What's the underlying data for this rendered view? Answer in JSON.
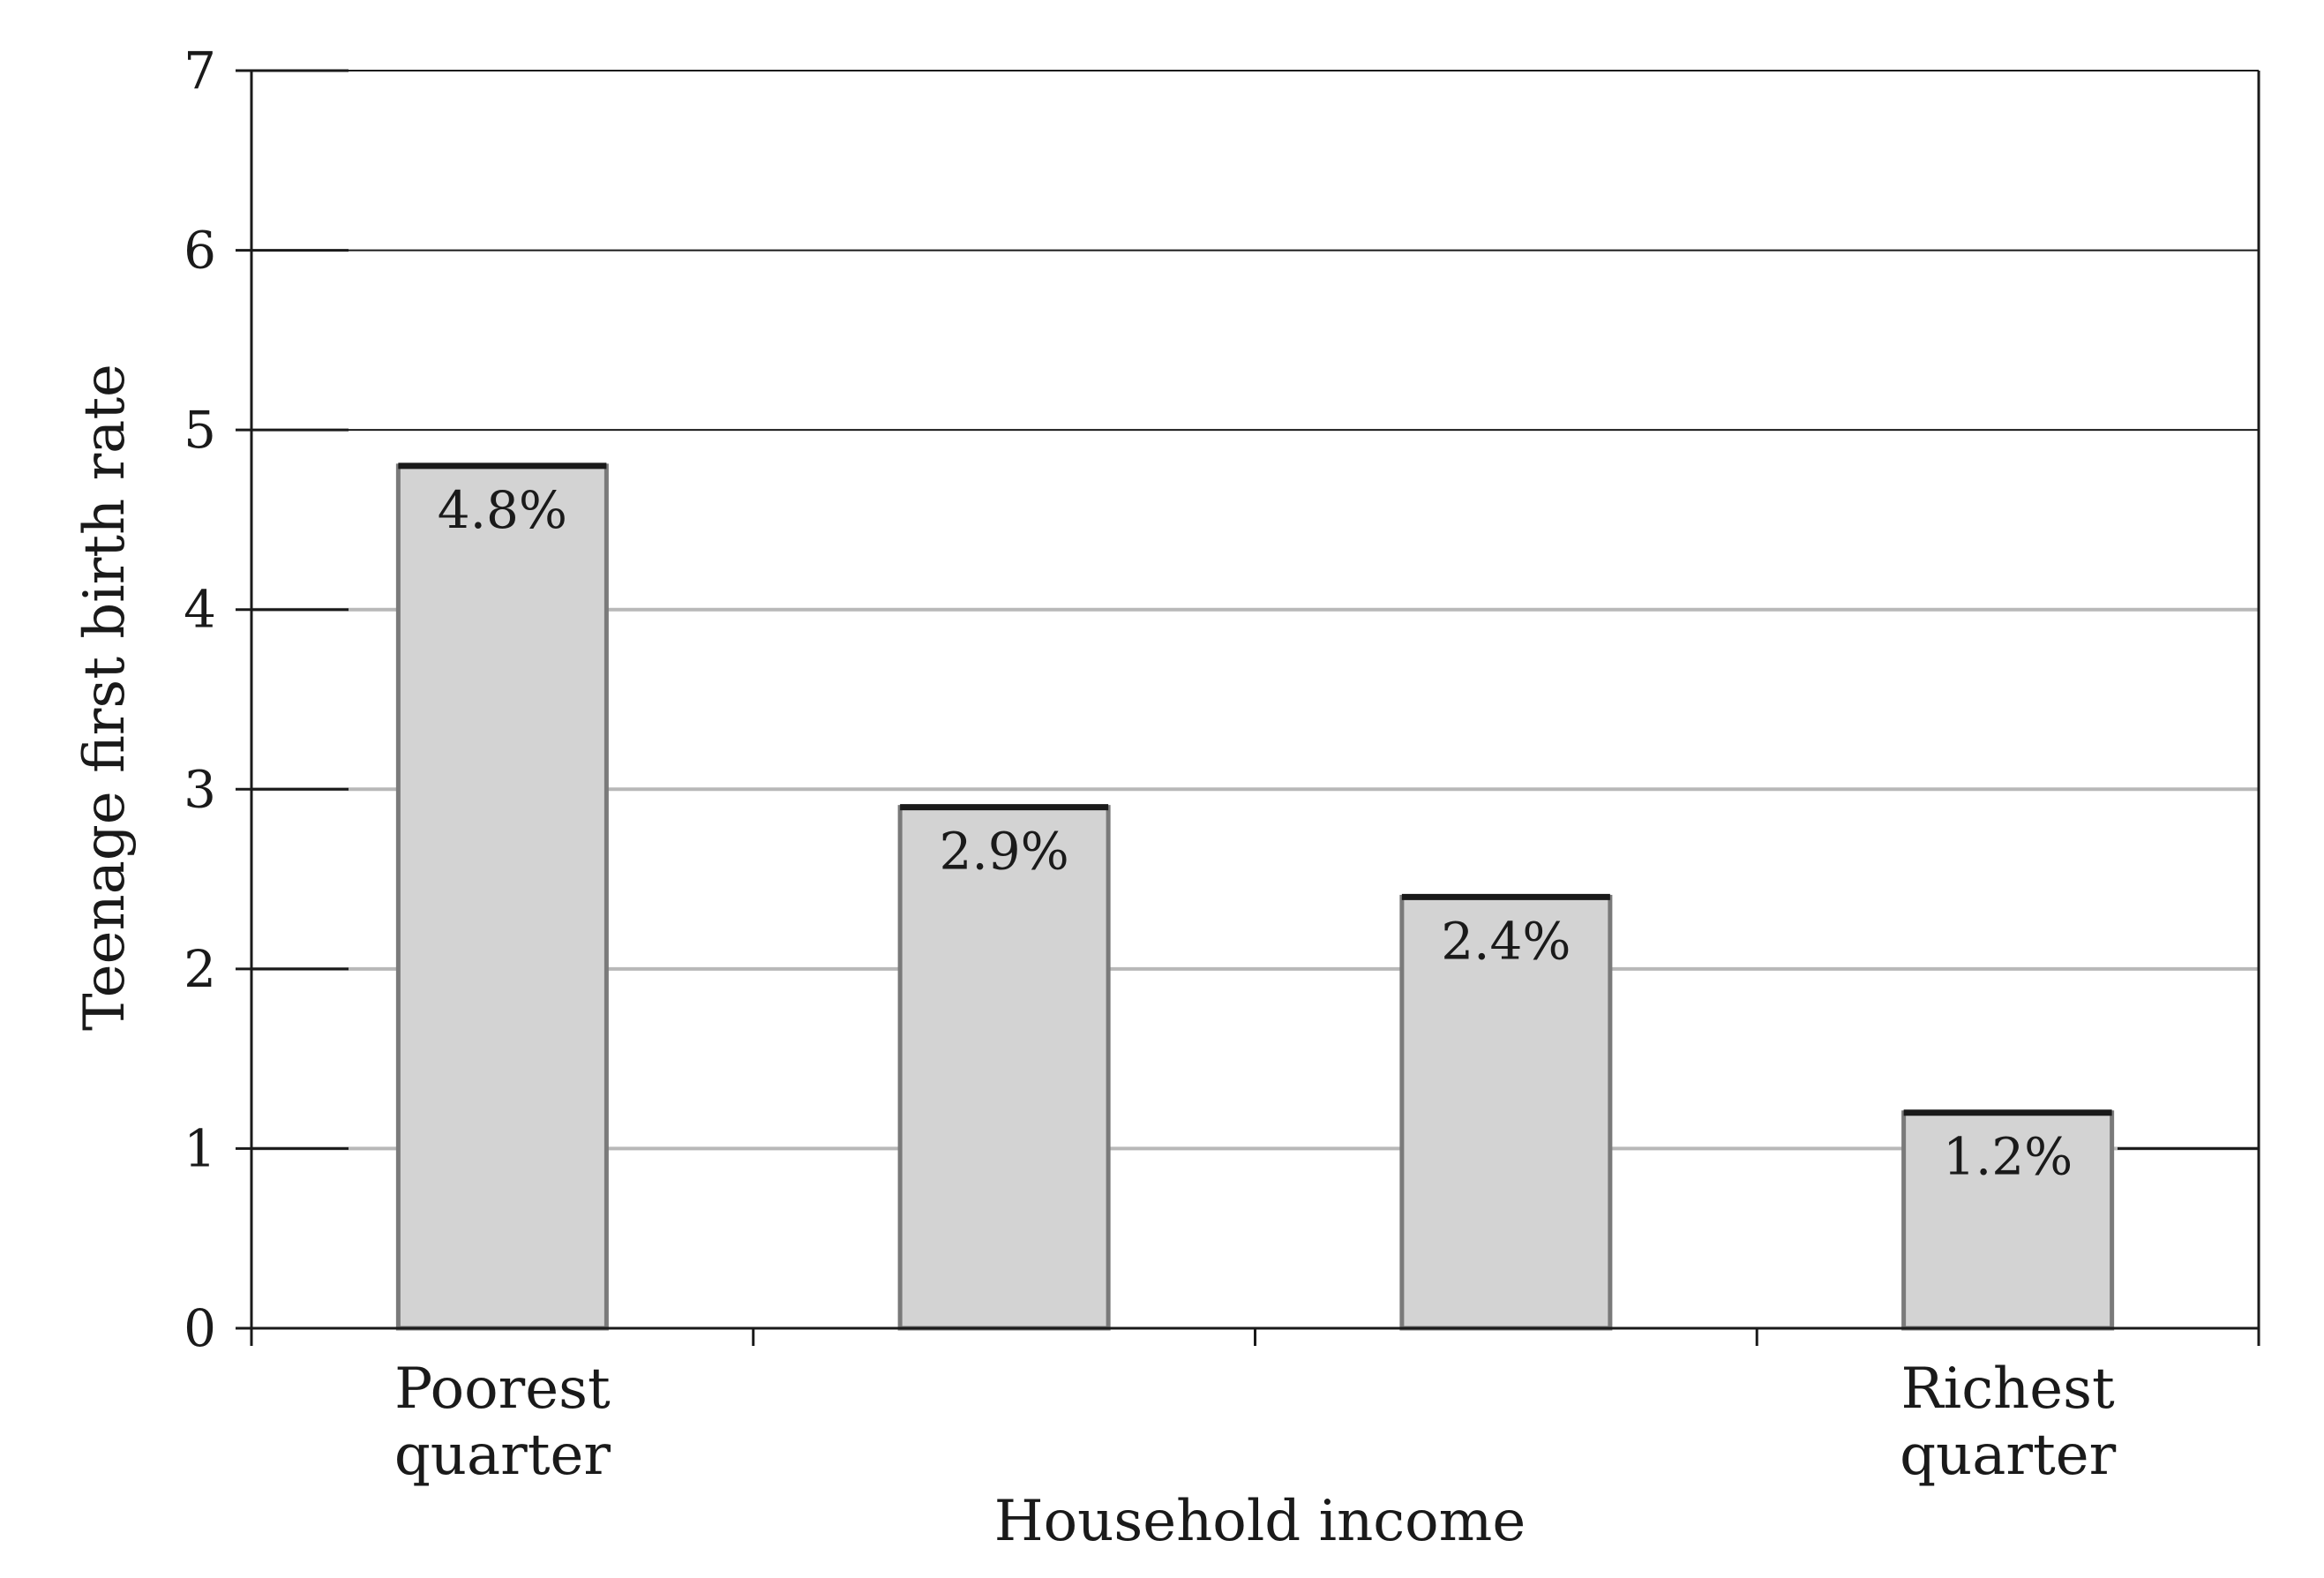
{
  "chart_data": {
    "type": "bar",
    "title": "",
    "categories": [
      "",
      "",
      "",
      ""
    ],
    "category_labels": [
      [
        "Poorest",
        "quarter"
      ],
      [],
      [],
      [
        "Richest",
        "quarter"
      ]
    ],
    "values": [
      4.8,
      2.9,
      2.4,
      1.2
    ],
    "data_labels": [
      "4.8%",
      "2.9%",
      "2.4%",
      "1.2%"
    ],
    "xlabel": "Household income",
    "ylabel": "Teenage first birth rate",
    "ylim": [
      0,
      7
    ],
    "yticks": [
      0,
      1,
      2,
      3,
      4,
      5,
      6,
      7
    ],
    "ytick_labels": [
      "0",
      "1",
      "2",
      "3",
      "4",
      "5",
      "6",
      "7"
    ],
    "grid": true,
    "legend": "none",
    "colors": {
      "bar_fill": "#d3d3d3",
      "bar_stroke": "#1a1a1a",
      "gridline": "#b8b8b8",
      "axis": "#1a1a1a"
    }
  }
}
